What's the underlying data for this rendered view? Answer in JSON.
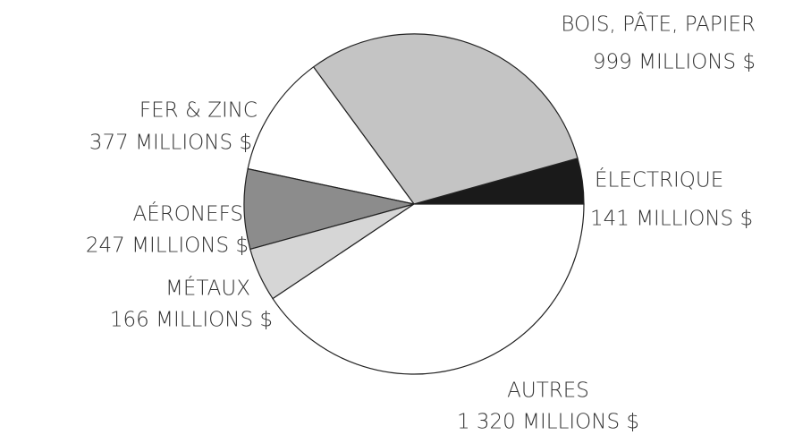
{
  "chart_data": {
    "type": "pie",
    "categories": [
      "ÉLECTRIQUE",
      "BOIS, PÂTE, PAPIER",
      "FER & ZINC",
      "AÉRONEFS",
      "MÉTAUX",
      "AUTRES"
    ],
    "values": [
      141,
      999,
      377,
      247,
      166,
      1320
    ],
    "value_labels": [
      "141 MILLIONS $",
      "999 MILLIONS $",
      "377 MILLIONS $",
      "247 MILLIONS $",
      "166 MILLIONS $",
      "1 320 MILLIONS $"
    ],
    "colors": [
      "#1a1a1a",
      "#c4c4c4",
      "#ffffff",
      "#8c8c8c",
      "#d6d6d6",
      "#ffffff"
    ]
  }
}
